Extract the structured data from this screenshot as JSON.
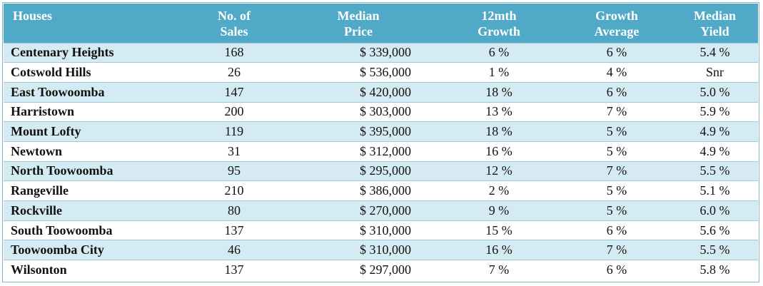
{
  "table": {
    "headers": [
      [
        "Houses",
        ""
      ],
      [
        "No. of",
        "Sales"
      ],
      [
        "Median",
        "Price"
      ],
      [
        "12mth",
        "Growth"
      ],
      [
        "Growth",
        "Average"
      ],
      [
        "Median",
        "Yield"
      ]
    ],
    "rows": [
      [
        "Centenary Heights",
        "168",
        "$ 339,000",
        "6 %",
        "6 %",
        "5.4 %"
      ],
      [
        "Cotswold Hills",
        "26",
        "$ 536,000",
        "1 %",
        "4 %",
        "Snr"
      ],
      [
        "East Toowoomba",
        "147",
        "$ 420,000",
        "18 %",
        "6 %",
        "5.0 %"
      ],
      [
        "Harristown",
        "200",
        "$ 303,000",
        "13 %",
        "7 %",
        "5.9 %"
      ],
      [
        "Mount Lofty",
        "119",
        "$ 395,000",
        "18 %",
        "5 %",
        "4.9 %"
      ],
      [
        "Newtown",
        "31",
        "$ 312,000",
        "16 %",
        "5 %",
        "4.9 %"
      ],
      [
        "North Toowoomba",
        "95",
        "$ 295,000",
        "12 %",
        "7 %",
        "5.5 %"
      ],
      [
        "Rangeville",
        "210",
        "$ 386,000",
        "2 %",
        "5 %",
        "5.1 %"
      ],
      [
        "Rockville",
        "80",
        "$ 270,000",
        "9 %",
        "5 %",
        "6.0 %"
      ],
      [
        "South Toowoomba",
        "137",
        "$ 310,000",
        "15 %",
        "6 %",
        "5.6 %"
      ],
      [
        "Toowoomba City",
        "46",
        "$ 310,000",
        "16 %",
        "7 %",
        "5.5 %"
      ],
      [
        "Wilsonton",
        "137",
        "$ 297,000",
        "7 %",
        "6 %",
        "5.8 %"
      ]
    ]
  },
  "colors": {
    "header_bg": "#4fa9c7",
    "header_text": "#ffffff",
    "row_shaded": "#d5ebf3",
    "row_plain": "#ffffff",
    "border": "#7fb6c9"
  }
}
